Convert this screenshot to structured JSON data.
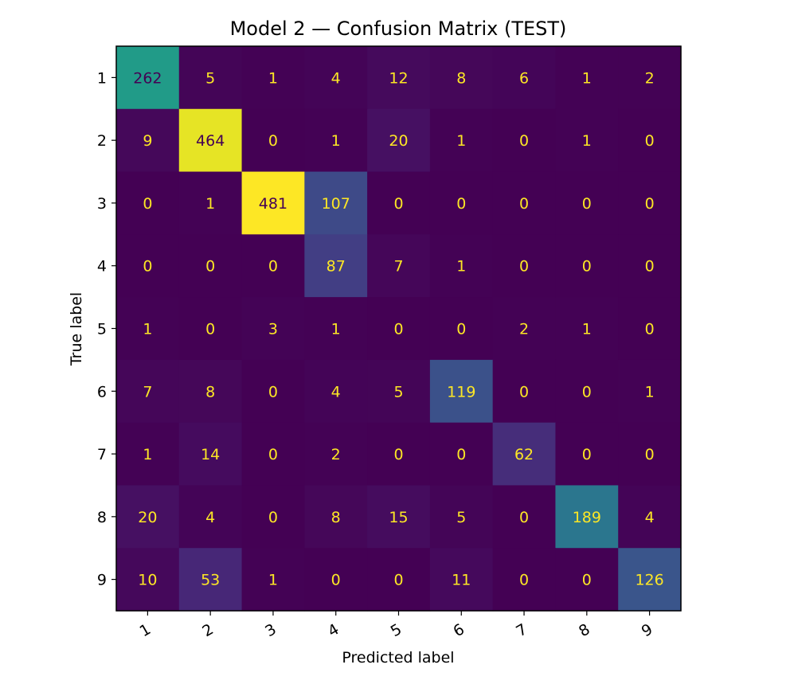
{
  "chart_data": {
    "type": "heatmap",
    "title": "Model 2 — Confusion Matrix (TEST)",
    "xlabel": "Predicted label",
    "ylabel": "True label",
    "x_labels": [
      "1",
      "2",
      "3",
      "4",
      "5",
      "6",
      "7",
      "8",
      "9"
    ],
    "y_labels": [
      "1",
      "2",
      "3",
      "4",
      "5",
      "6",
      "7",
      "8",
      "9"
    ],
    "values": [
      [
        262,
        5,
        1,
        4,
        12,
        8,
        6,
        1,
        2
      ],
      [
        9,
        464,
        0,
        1,
        20,
        1,
        0,
        1,
        0
      ],
      [
        0,
        1,
        481,
        107,
        0,
        0,
        0,
        0,
        0
      ],
      [
        0,
        0,
        0,
        87,
        7,
        1,
        0,
        0,
        0
      ],
      [
        1,
        0,
        3,
        1,
        0,
        0,
        2,
        1,
        0
      ],
      [
        7,
        8,
        0,
        4,
        5,
        119,
        0,
        0,
        1
      ],
      [
        1,
        14,
        0,
        2,
        0,
        0,
        62,
        0,
        0
      ],
      [
        20,
        4,
        0,
        8,
        15,
        5,
        0,
        189,
        4
      ],
      [
        10,
        53,
        1,
        0,
        0,
        11,
        0,
        0,
        126
      ]
    ],
    "colormap": "viridis",
    "colorbar": false,
    "text_color_dark": "#440154",
    "text_color_light": "#fde725"
  }
}
